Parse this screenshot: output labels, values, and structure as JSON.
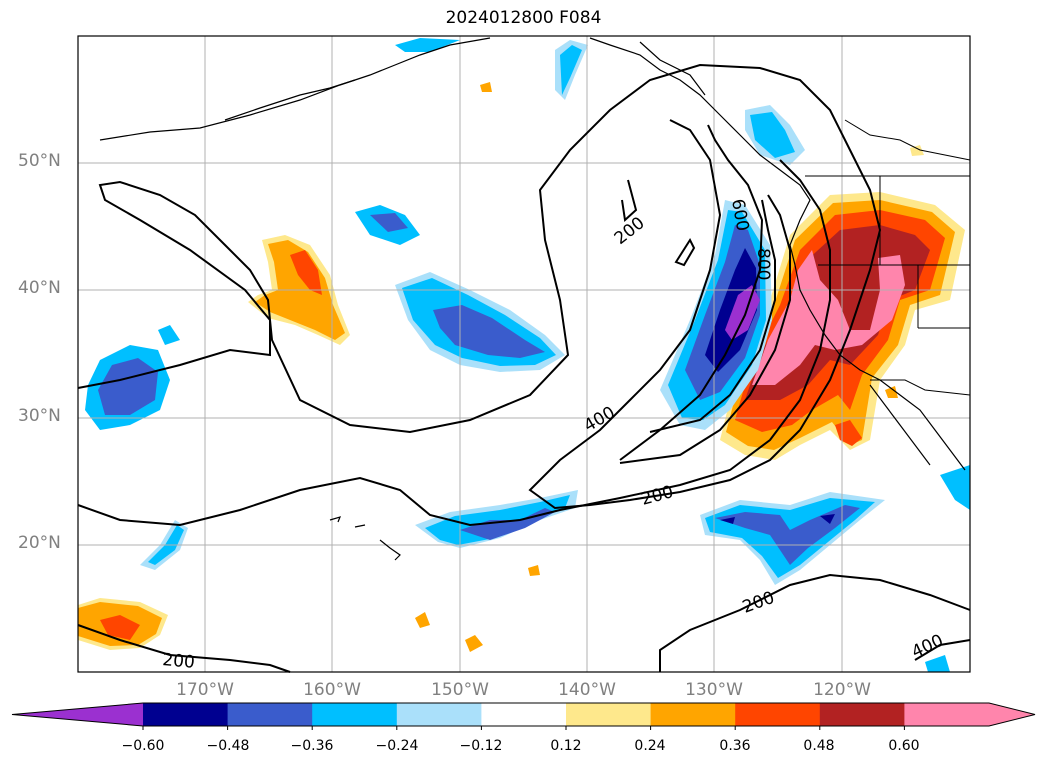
{
  "title": "2024012800 F084",
  "lat_labels": [
    "50°N",
    "40°N",
    "30°N",
    "20°N"
  ],
  "lon_labels": [
    "170°W",
    "160°W",
    "150°W",
    "140°W",
    "130°W",
    "120°W"
  ],
  "contour_labels": [
    "200",
    "400",
    "600",
    "800",
    "200",
    "200",
    "200",
    "400"
  ],
  "colorbar": {
    "colors": [
      "#9b30d0",
      "#000090",
      "#3a5ccc",
      "#00bfff",
      "#aae0fa",
      "#ffffff",
      "#fee88c",
      "#ffa500",
      "#ff4500",
      "#b22222",
      "#ff85ac",
      "#ff85ac"
    ],
    "tick_labels": [
      "−0.60",
      "−0.48",
      "−0.36",
      "−0.24",
      "−0.12",
      "0.12",
      "0.24",
      "0.36",
      "0.48",
      "0.60"
    ]
  }
}
